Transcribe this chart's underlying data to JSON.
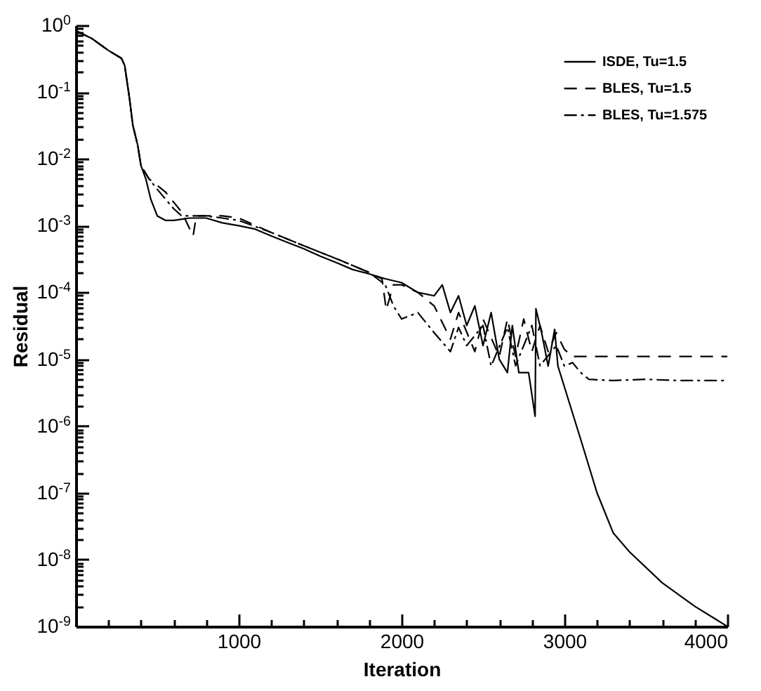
{
  "chart_data": {
    "type": "line",
    "xlabel": "Iteration",
    "ylabel": "Residual",
    "log": "y",
    "legend": "top right",
    "xlim": [
      0,
      4000
    ],
    "ylim": [
      1e-09,
      1
    ],
    "xticks": [
      {
        "value": 200,
        "label": null
      },
      {
        "value": 400,
        "label": null
      },
      {
        "value": 600,
        "label": null
      },
      {
        "value": 800,
        "label": null
      },
      1000,
      {
        "value": 1200,
        "label": null
      },
      {
        "value": 1400,
        "label": null
      },
      {
        "value": 1600,
        "label": null
      },
      {
        "value": 1800,
        "label": null
      },
      2000,
      {
        "value": 2200,
        "label": null
      },
      {
        "value": 2400,
        "label": null
      },
      {
        "value": 2600,
        "label": null
      },
      {
        "value": 2800,
        "label": null
      },
      3000,
      {
        "value": 3200,
        "label": null
      },
      {
        "value": 3400,
        "label": null
      },
      {
        "value": 3600,
        "label": null
      },
      {
        "value": 3800,
        "label": null
      },
      4000
    ],
    "yticks": [
      {
        "value": 1e-09,
        "label": "10$^{-9}$"
      },
      {
        "value": 2e-09,
        "label": null
      },
      {
        "value": 3e-09,
        "label": null
      },
      {
        "value": 4e-09,
        "label": null
      },
      {
        "value": 5e-09,
        "label": null
      },
      {
        "value": 6e-09,
        "label": null
      },
      {
        "value": 7e-09,
        "label": null
      },
      {
        "value": 8e-09,
        "label": null
      },
      {
        "value": 9e-09,
        "label": null
      },
      {
        "value": 1e-08,
        "label": "10$^{-8}$"
      },
      {
        "value": 2e-08,
        "label": null
      },
      {
        "value": 3e-08,
        "label": null
      },
      {
        "value": 4e-08,
        "label": null
      },
      {
        "value": 5e-08,
        "label": null
      },
      {
        "value": 6e-08,
        "label": null
      },
      {
        "value": 7e-08,
        "label": null
      },
      {
        "value": 8e-08,
        "label": null
      },
      {
        "value": 9e-08,
        "label": null
      },
      {
        "value": 1e-07,
        "label": "10$^{-7}$"
      },
      {
        "value": 2e-07,
        "label": null
      },
      {
        "value": 3e-07,
        "label": null
      },
      {
        "value": 4e-07,
        "label": null
      },
      {
        "value": 5e-07,
        "label": null
      },
      {
        "value": 6e-07,
        "label": null
      },
      {
        "value": 7e-07,
        "label": null
      },
      {
        "value": 8e-07,
        "label": null
      },
      {
        "value": 9e-07,
        "label": null
      },
      {
        "value": 1e-06,
        "label": "10$^{-6}$"
      },
      {
        "value": 2e-06,
        "label": null
      },
      {
        "value": 3e-06,
        "label": null
      },
      {
        "value": 4e-06,
        "label": null
      },
      {
        "value": 5e-06,
        "label": null
      },
      {
        "value": 6e-06,
        "label": null
      },
      {
        "value": 7e-06,
        "label": null
      },
      {
        "value": 8e-06,
        "label": null
      },
      {
        "value": 9e-06,
        "label": null
      },
      {
        "value": 1e-05,
        "label": "10$^{-5}$"
      },
      {
        "value": 2e-05,
        "label": null
      },
      {
        "value": 3e-05,
        "label": null
      },
      {
        "value": 4e-05,
        "label": null
      },
      {
        "value": 5e-05,
        "label": null
      },
      {
        "value": 6e-05,
        "label": null
      },
      {
        "value": 7e-05,
        "label": null
      },
      {
        "value": 8e-05,
        "label": null
      },
      {
        "value": 9e-05,
        "label": null
      },
      {
        "value": 0.0001,
        "label": "10$^{-4}$"
      },
      {
        "value": 0.0002,
        "label": null
      },
      {
        "value": 0.0003,
        "label": null
      },
      {
        "value": 0.0004,
        "label": null
      },
      {
        "value": 0.0005,
        "label": null
      },
      {
        "value": 0.0006,
        "label": null
      },
      {
        "value": 0.0007,
        "label": null
      },
      {
        "value": 0.0008,
        "label": null
      },
      {
        "value": 0.0009,
        "label": null
      },
      {
        "value": 0.001,
        "label": "10$^{-3}$"
      },
      {
        "value": 0.002,
        "label": null
      },
      {
        "value": 0.003,
        "label": null
      },
      {
        "value": 0.004,
        "label": null
      },
      {
        "value": 0.005,
        "label": null
      },
      {
        "value": 0.006,
        "label": null
      },
      {
        "value": 0.007,
        "label": null
      },
      {
        "value": 0.008,
        "label": null
      },
      {
        "value": 0.009,
        "label": null
      },
      {
        "value": 0.01,
        "label": "10$^{-2}$"
      },
      {
        "value": 0.02,
        "label": null
      },
      {
        "value": 0.03,
        "label": null
      },
      {
        "value": 0.04,
        "label": null
      },
      {
        "value": 0.05,
        "label": null
      },
      {
        "value": 0.06,
        "label": null
      },
      {
        "value": 0.07,
        "label": null
      },
      {
        "value": 0.08,
        "label": null
      },
      {
        "value": 0.09,
        "label": null
      },
      {
        "value": 0.1,
        "label": "10$^{-1}$"
      },
      {
        "value": 0.2,
        "label": null
      },
      {
        "value": 0.3,
        "label": null
      },
      {
        "value": 0.4,
        "label": null
      },
      {
        "value": 0.5,
        "label": null
      },
      {
        "value": 0.6,
        "label": null
      },
      {
        "value": 0.7,
        "label": null
      },
      {
        "value": 0.8,
        "label": null
      },
      {
        "value": 0.9,
        "label": null
      },
      {
        "value": 1,
        "label": "10$^{0}$"
      }
    ],
    "series": [
      {
        "name": "ISDE, Tu=1.5",
        "color": "#000000",
        "line_style": "solid",
        "x": [
          0,
          100,
          200,
          280,
          300,
          330,
          350,
          380,
          400,
          430,
          460,
          500,
          550,
          600,
          700,
          800,
          900,
          1000,
          1100,
          1200,
          1300,
          1400,
          1500,
          1600,
          1700,
          1800,
          1900,
          2000,
          2100,
          2200,
          2250,
          2300,
          2350,
          2400,
          2450,
          2500,
          2550,
          2600,
          2650,
          2680,
          2720,
          2780,
          2820,
          2825,
          2860,
          2900,
          2940,
          2960,
          3100,
          3200,
          3300,
          3400,
          3600,
          3800,
          4000
        ],
        "values": [
          0.83,
          0.63,
          0.42,
          0.32,
          0.25,
          0.079,
          0.032,
          0.016,
          0.0079,
          0.005,
          0.0025,
          0.0014,
          0.0012,
          0.0012,
          0.0013,
          0.0013,
          0.0011,
          0.001,
          0.00089,
          0.0007,
          0.00056,
          0.00045,
          0.00035,
          0.00028,
          0.00022,
          0.00019,
          0.00016,
          0.00014,
          0.0001,
          8.9e-05,
          0.00013,
          5e-05,
          8.9e-05,
          3.2e-05,
          6.3e-05,
          1.6e-05,
          5e-05,
          1e-05,
          6.3e-06,
          3.2e-05,
          6.3e-06,
          6.3e-06,
          1.4e-06,
          5.7e-05,
          2.5e-05,
          7.9e-06,
          2.8e-05,
          7.9e-06,
          6.3e-07,
          1e-07,
          2.5e-08,
          1.3e-08,
          4.5e-09,
          2e-09,
          1e-09
        ]
      },
      {
        "name": "BLES, Tu=1.5",
        "color": "#000000",
        "line_style": "dashed",
        "x": [
          0,
          100,
          200,
          280,
          300,
          330,
          350,
          380,
          400,
          450,
          550,
          650,
          720,
          740,
          800,
          900,
          1000,
          1200,
          1400,
          1600,
          1800,
          1880,
          1906,
          1950,
          2000,
          2100,
          2200,
          2300,
          2350,
          2450,
          2500,
          2600,
          2650,
          2700,
          2750,
          2800,
          2850,
          2900,
          2950,
          3000,
          3050,
          3100,
          3500,
          4000
        ],
        "values": [
          0.83,
          0.63,
          0.42,
          0.32,
          0.25,
          0.079,
          0.032,
          0.016,
          0.0079,
          0.005,
          0.0032,
          0.0016,
          0.0007,
          0.0014,
          0.0014,
          0.0014,
          0.0013,
          0.00079,
          0.0005,
          0.00032,
          0.0002,
          0.00016,
          5.5e-05,
          0.00013,
          0.00013,
          0.0001,
          6.3e-05,
          2e-05,
          5e-05,
          1.3e-05,
          4e-05,
          1.1e-05,
          4e-05,
          1.1e-05,
          4e-05,
          1.3e-05,
          3.2e-05,
          1.3e-05,
          2.5e-05,
          1.4e-05,
          1.1e-05,
          1.1e-05,
          1.1e-05,
          1.1e-05
        ]
      },
      {
        "name": "BLES, Tu=1.575",
        "color": "#000000",
        "line_style": "dashdot",
        "x": [
          0,
          100,
          200,
          280,
          300,
          330,
          350,
          380,
          400,
          450,
          500,
          600,
          650,
          700,
          800,
          900,
          1000,
          1200,
          1400,
          1600,
          1800,
          1900,
          1950,
          2000,
          2100,
          2200,
          2300,
          2350,
          2400,
          2500,
          2550,
          2650,
          2700,
          2800,
          2850,
          2950,
          3000,
          3050,
          3100,
          3150,
          3300,
          3500,
          3700,
          4000
        ],
        "values": [
          0.83,
          0.63,
          0.42,
          0.32,
          0.25,
          0.079,
          0.032,
          0.016,
          0.0079,
          0.005,
          0.0035,
          0.0018,
          0.0014,
          0.0014,
          0.0014,
          0.0013,
          0.0012,
          0.00079,
          0.0005,
          0.00032,
          0.0002,
          0.00013,
          6.3e-05,
          4e-05,
          5e-05,
          2.5e-05,
          1.3e-05,
          3e-05,
          1.6e-05,
          3.2e-05,
          7.9e-06,
          3e-05,
          8e-06,
          3.2e-05,
          8e-06,
          1.6e-05,
          7.9e-06,
          8.9e-06,
          6.3e-06,
          5e-06,
          4.8e-06,
          5e-06,
          4.8e-06,
          4.8e-06
        ]
      }
    ]
  }
}
